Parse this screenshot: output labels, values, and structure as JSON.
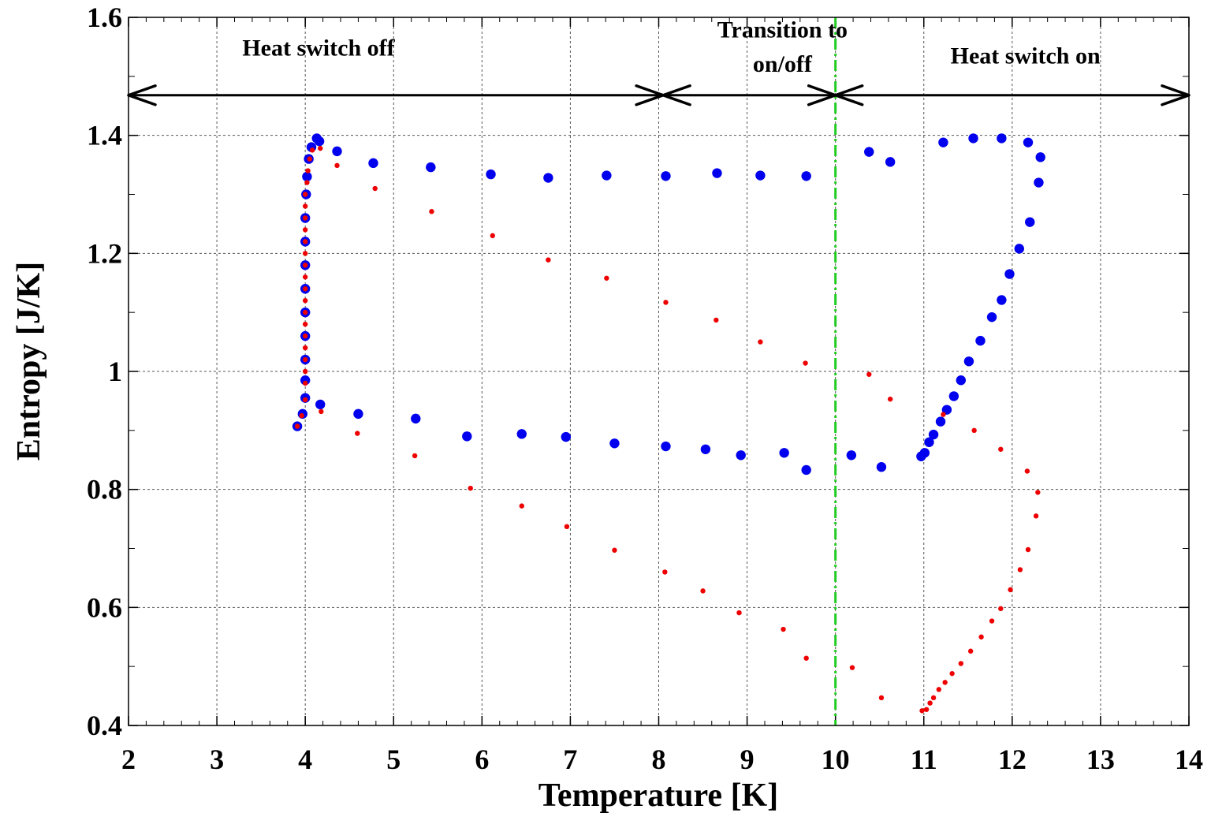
{
  "chart_data": {
    "type": "scatter",
    "title": "",
    "xlabel": "Temperature [K]",
    "ylabel": "Entropy [J/K]",
    "xlim": [
      2,
      14
    ],
    "ylim": [
      0.4,
      1.6
    ],
    "xticks": [
      "2",
      "3",
      "4",
      "5",
      "6",
      "7",
      "8",
      "9",
      "10",
      "11",
      "12",
      "13",
      "14"
    ],
    "yticks": [
      "0.4",
      "0.6",
      "0.8",
      "1",
      "1.2",
      "1.4",
      "1.6"
    ],
    "grid": true,
    "vline": {
      "x": 10.0,
      "color": "#22cc22",
      "style": "dash-dot"
    },
    "annotations": [
      {
        "text": "Heat switch off",
        "x": 4.15,
        "y": 1.535
      },
      {
        "text": "Transition to",
        "x": 9.4,
        "y": 1.566
      },
      {
        "text": "on/off",
        "x": 9.4,
        "y": 1.508
      },
      {
        "text": "Heat switch on",
        "x": 12.15,
        "y": 1.522
      }
    ],
    "arrows": [
      {
        "from": 2.0,
        "to": 8.05,
        "y": 1.468
      },
      {
        "from": 8.05,
        "to": 10.0,
        "y": 1.468
      },
      {
        "from": 10.0,
        "to": 14.0,
        "y": 1.468
      }
    ],
    "series": [
      {
        "color": "#0000ee",
        "marker": "large",
        "points": [
          [
            3.91,
            0.907
          ],
          [
            3.97,
            0.928
          ],
          [
            4.0,
            0.955
          ],
          [
            4.0,
            0.985
          ],
          [
            4.0,
            1.02
          ],
          [
            4.0,
            1.06
          ],
          [
            4.0,
            1.1
          ],
          [
            4.0,
            1.14
          ],
          [
            4.0,
            1.18
          ],
          [
            4.0,
            1.22
          ],
          [
            4.0,
            1.26
          ],
          [
            4.01,
            1.3
          ],
          [
            4.02,
            1.33
          ],
          [
            4.04,
            1.36
          ],
          [
            4.07,
            1.38
          ],
          [
            4.13,
            1.395
          ],
          [
            4.16,
            1.39
          ],
          [
            4.36,
            1.373
          ],
          [
            4.77,
            1.353
          ],
          [
            5.42,
            1.346
          ],
          [
            6.1,
            1.334
          ],
          [
            6.75,
            1.328
          ],
          [
            7.41,
            1.332
          ],
          [
            8.08,
            1.331
          ],
          [
            8.66,
            1.336
          ],
          [
            9.15,
            1.332
          ],
          [
            9.67,
            1.331
          ],
          [
            10.38,
            1.372
          ],
          [
            10.62,
            1.355
          ],
          [
            11.22,
            1.388
          ],
          [
            11.56,
            1.395
          ],
          [
            11.88,
            1.395
          ],
          [
            12.18,
            1.388
          ],
          [
            12.32,
            1.363
          ],
          [
            12.3,
            1.32
          ],
          [
            12.2,
            1.253
          ],
          [
            12.08,
            1.208
          ],
          [
            11.97,
            1.165
          ],
          [
            11.88,
            1.121
          ],
          [
            11.77,
            1.092
          ],
          [
            11.64,
            1.052
          ],
          [
            11.51,
            1.017
          ],
          [
            11.42,
            0.985
          ],
          [
            11.34,
            0.958
          ],
          [
            11.26,
            0.935
          ],
          [
            11.19,
            0.915
          ],
          [
            11.11,
            0.893
          ],
          [
            11.06,
            0.88
          ],
          [
            11.01,
            0.862
          ],
          [
            10.97,
            0.856
          ],
          [
            10.52,
            0.838
          ],
          [
            10.18,
            0.858
          ],
          [
            9.67,
            0.833
          ],
          [
            9.42,
            0.862
          ],
          [
            8.93,
            0.858
          ],
          [
            8.53,
            0.868
          ],
          [
            8.08,
            0.873
          ],
          [
            7.5,
            0.878
          ],
          [
            6.95,
            0.889
          ],
          [
            6.45,
            0.894
          ],
          [
            5.83,
            0.89
          ],
          [
            5.25,
            0.92
          ],
          [
            4.6,
            0.928
          ],
          [
            4.17,
            0.944
          ]
        ]
      },
      {
        "color": "#ee0000",
        "marker": "small",
        "points": [
          [
            3.91,
            0.907
          ],
          [
            3.96,
            0.925
          ],
          [
            4.0,
            0.952
          ],
          [
            4.0,
            0.98
          ],
          [
            4.0,
            1.0
          ],
          [
            4.0,
            1.02
          ],
          [
            4.0,
            1.04
          ],
          [
            4.0,
            1.06
          ],
          [
            4.0,
            1.08
          ],
          [
            4.0,
            1.1
          ],
          [
            4.0,
            1.12
          ],
          [
            4.0,
            1.14
          ],
          [
            4.0,
            1.16
          ],
          [
            4.0,
            1.18
          ],
          [
            4.0,
            1.2
          ],
          [
            4.0,
            1.22
          ],
          [
            4.0,
            1.24
          ],
          [
            4.0,
            1.26
          ],
          [
            4.0,
            1.28
          ],
          [
            4.0,
            1.3
          ],
          [
            4.02,
            1.32
          ],
          [
            4.03,
            1.34
          ],
          [
            4.05,
            1.36
          ],
          [
            4.08,
            1.375
          ],
          [
            4.17,
            1.378
          ],
          [
            4.36,
            1.349
          ],
          [
            4.79,
            1.31
          ],
          [
            5.43,
            1.271
          ],
          [
            6.12,
            1.23
          ],
          [
            6.75,
            1.189
          ],
          [
            7.41,
            1.158
          ],
          [
            8.08,
            1.117
          ],
          [
            8.65,
            1.087
          ],
          [
            9.15,
            1.05
          ],
          [
            9.66,
            1.014
          ],
          [
            10.38,
            0.995
          ],
          [
            10.62,
            0.953
          ],
          [
            11.22,
            0.927
          ],
          [
            11.57,
            0.9
          ],
          [
            11.87,
            0.868
          ],
          [
            12.17,
            0.831
          ],
          [
            12.29,
            0.795
          ],
          [
            12.27,
            0.755
          ],
          [
            12.18,
            0.698
          ],
          [
            12.09,
            0.664
          ],
          [
            11.98,
            0.63
          ],
          [
            11.87,
            0.598
          ],
          [
            11.77,
            0.577
          ],
          [
            11.65,
            0.55
          ],
          [
            11.53,
            0.526
          ],
          [
            11.42,
            0.505
          ],
          [
            11.32,
            0.488
          ],
          [
            11.24,
            0.473
          ],
          [
            11.17,
            0.461
          ],
          [
            11.11,
            0.447
          ],
          [
            11.07,
            0.438
          ],
          [
            11.03,
            0.427
          ],
          [
            10.98,
            0.425
          ],
          [
            10.52,
            0.447
          ],
          [
            10.19,
            0.498
          ],
          [
            9.67,
            0.514
          ],
          [
            9.41,
            0.563
          ],
          [
            8.91,
            0.591
          ],
          [
            8.5,
            0.628
          ],
          [
            8.07,
            0.66
          ],
          [
            7.5,
            0.697
          ],
          [
            6.96,
            0.737
          ],
          [
            6.45,
            0.772
          ],
          [
            5.87,
            0.802
          ],
          [
            5.24,
            0.857
          ],
          [
            4.59,
            0.895
          ],
          [
            4.18,
            0.932
          ]
        ]
      }
    ]
  }
}
